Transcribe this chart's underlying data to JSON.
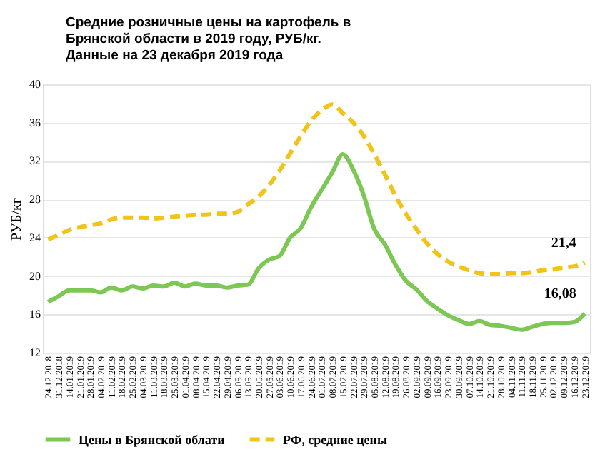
{
  "chart_data": {
    "type": "line",
    "title": "Средние розничные цены на картофель в\nБрянской области в 2019 году, РУБ/кг.\nДанные на 23 декабря 2019 года",
    "ylabel": "РУБ/кг",
    "categories": [
      "24.12.2018",
      "31.12.2018",
      "14.01.2019",
      "21.01.2019",
      "28.01.2019",
      "04.02.2019",
      "11.02.2019",
      "18.02.2019",
      "25.02.2019",
      "04.03.2019",
      "11.03.2019",
      "18.03.2019",
      "25.03.2019",
      "01.04.2019",
      "08.04.2019",
      "15.04.2019",
      "22.04.2019",
      "29.04.2019",
      "06.05.2019",
      "13.05.2019",
      "20.05.2019",
      "27.05.2019",
      "03.06.2019",
      "10.06.2019",
      "17.06.2019",
      "24.06.2019",
      "01.07.2019",
      "08.07.2019",
      "15.07.2019",
      "22.07.2019",
      "29.07.2019",
      "05.08.2019",
      "12.08.2019",
      "19.08.2019",
      "26.08.2019",
      "02.09.2019",
      "09.09.2019",
      "16.09.2019",
      "23.09.2019",
      "30.09.2019",
      "07.10.2019",
      "14.10.2019",
      "21.10.2019",
      "28.10.2019",
      "04.11.2019",
      "11.11.2019",
      "18.11.2019",
      "25.11.2019",
      "02.12.2019",
      "09.12.2019",
      "16.12.2019",
      "23.12.2019"
    ],
    "series": [
      {
        "name": "Цены в Брянской облати",
        "color": "#7dc855",
        "line_style": "solid",
        "values": [
          17.3,
          17.9,
          18.5,
          18.5,
          18.5,
          18.3,
          18.8,
          18.5,
          18.9,
          18.7,
          19.0,
          18.9,
          19.3,
          18.9,
          19.2,
          19.0,
          19.0,
          18.8,
          19.0,
          19.1,
          20.8,
          21.7,
          22.1,
          24.0,
          25.0,
          27.2,
          29.0,
          30.8,
          32.7,
          31.1,
          28.4,
          24.9,
          23.3,
          21.2,
          19.5,
          18.6,
          17.4,
          16.6,
          15.9,
          15.4,
          15.0,
          15.3,
          14.9,
          14.8,
          14.6,
          14.4,
          14.7,
          15.0,
          15.1,
          15.1,
          15.2,
          16.08
        ]
      },
      {
        "name": "РФ, средние цены",
        "color": "#f0c419",
        "line_style": "dashed",
        "values": [
          23.8,
          24.3,
          24.8,
          25.1,
          25.3,
          25.5,
          25.9,
          26.1,
          26.1,
          26.1,
          26.0,
          26.1,
          26.2,
          26.3,
          26.4,
          26.4,
          26.5,
          26.5,
          26.7,
          27.5,
          28.3,
          29.5,
          31.0,
          32.8,
          34.6,
          36.2,
          37.3,
          37.9,
          37.0,
          36.0,
          34.6,
          32.7,
          30.6,
          28.4,
          26.5,
          24.9,
          23.4,
          22.3,
          21.5,
          21.0,
          20.6,
          20.3,
          20.2,
          20.2,
          20.3,
          20.3,
          20.4,
          20.6,
          20.7,
          20.9,
          21.0,
          21.4
        ]
      }
    ],
    "annotations": [
      {
        "text": "21,4",
        "x": "23.12.2019",
        "y": 21.4
      },
      {
        "text": "16,08",
        "x": "23.12.2019",
        "y": 16.08
      }
    ],
    "ylim": [
      12,
      40
    ],
    "yticks": [
      12,
      16,
      20,
      24,
      28,
      32,
      36,
      40
    ],
    "grid": "y",
    "legend": "bottom",
    "marker": "none"
  }
}
